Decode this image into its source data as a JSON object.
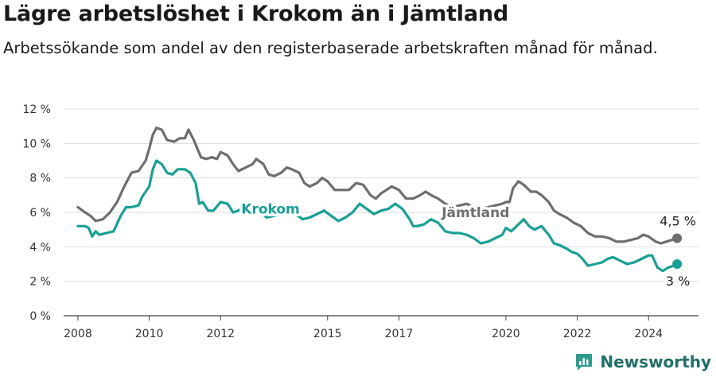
{
  "title": "Lägre arbetslöshet i Krokom än i Jämtland",
  "subtitle": "Arbetssökande som andel av den registerbaserade arbetskraften månad för månad.",
  "brand": {
    "name": "Newsworthy",
    "icon": "newsworthy-logo-icon"
  },
  "colors": {
    "jamtland": "#6e6e6e",
    "krokom": "#17a096",
    "grid": "#dddddd"
  },
  "chart_data": {
    "type": "line",
    "y_ticks": [
      "0 %",
      "2 %",
      "4 %",
      "6 %",
      "8 %",
      "10 %",
      "12 %"
    ],
    "x_ticks": [
      "2008",
      "2010",
      "2012",
      "2015",
      "2017",
      "2020",
      "2022",
      "2024"
    ],
    "ylim": [
      0,
      12
    ],
    "xlim": [
      2007.6,
      2025.4
    ],
    "grid": true,
    "series": [
      {
        "name": "Jämtland",
        "end_label": "4,5 %",
        "points": [
          [
            2008.0,
            6.3
          ],
          [
            2008.2,
            6.0
          ],
          [
            2008.35,
            5.8
          ],
          [
            2008.5,
            5.5
          ],
          [
            2008.7,
            5.6
          ],
          [
            2008.9,
            6.0
          ],
          [
            2009.1,
            6.6
          ],
          [
            2009.3,
            7.5
          ],
          [
            2009.5,
            8.3
          ],
          [
            2009.7,
            8.4
          ],
          [
            2009.9,
            9.0
          ],
          [
            2010.0,
            9.7
          ],
          [
            2010.1,
            10.5
          ],
          [
            2010.2,
            10.9
          ],
          [
            2010.35,
            10.8
          ],
          [
            2010.5,
            10.2
          ],
          [
            2010.7,
            10.1
          ],
          [
            2010.85,
            10.3
          ],
          [
            2011.0,
            10.3
          ],
          [
            2011.1,
            10.8
          ],
          [
            2011.25,
            10.2
          ],
          [
            2011.45,
            9.2
          ],
          [
            2011.6,
            9.1
          ],
          [
            2011.75,
            9.2
          ],
          [
            2011.9,
            9.1
          ],
          [
            2012.0,
            9.5
          ],
          [
            2012.2,
            9.3
          ],
          [
            2012.35,
            8.8
          ],
          [
            2012.5,
            8.4
          ],
          [
            2012.7,
            8.6
          ],
          [
            2012.9,
            8.8
          ],
          [
            2013.0,
            9.1
          ],
          [
            2013.2,
            8.8
          ],
          [
            2013.35,
            8.2
          ],
          [
            2013.5,
            8.1
          ],
          [
            2013.7,
            8.3
          ],
          [
            2013.85,
            8.6
          ],
          [
            2014.0,
            8.5
          ],
          [
            2014.2,
            8.3
          ],
          [
            2014.35,
            7.7
          ],
          [
            2014.5,
            7.5
          ],
          [
            2014.7,
            7.7
          ],
          [
            2014.85,
            8.0
          ],
          [
            2015.0,
            7.8
          ],
          [
            2015.2,
            7.3
          ],
          [
            2015.4,
            7.3
          ],
          [
            2015.6,
            7.3
          ],
          [
            2015.8,
            7.7
          ],
          [
            2016.0,
            7.6
          ],
          [
            2016.2,
            7.0
          ],
          [
            2016.35,
            6.8
          ],
          [
            2016.5,
            7.1
          ],
          [
            2016.65,
            7.3
          ],
          [
            2016.8,
            7.5
          ],
          [
            2017.0,
            7.3
          ],
          [
            2017.2,
            6.8
          ],
          [
            2017.4,
            6.8
          ],
          [
            2017.6,
            7.0
          ],
          [
            2017.75,
            7.2
          ],
          [
            2017.9,
            7.0
          ],
          [
            2018.1,
            6.8
          ],
          [
            2018.3,
            6.5
          ],
          [
            2018.5,
            6.3
          ],
          [
            2018.7,
            6.4
          ],
          [
            2018.9,
            6.5
          ],
          [
            2019.1,
            6.3
          ],
          [
            2019.3,
            6.2
          ],
          [
            2019.5,
            6.3
          ],
          [
            2019.7,
            6.4
          ],
          [
            2019.9,
            6.5
          ],
          [
            2020.0,
            6.6
          ],
          [
            2020.1,
            6.6
          ],
          [
            2020.2,
            7.4
          ],
          [
            2020.35,
            7.8
          ],
          [
            2020.5,
            7.6
          ],
          [
            2020.7,
            7.2
          ],
          [
            2020.85,
            7.2
          ],
          [
            2021.0,
            7.0
          ],
          [
            2021.2,
            6.6
          ],
          [
            2021.35,
            6.1
          ],
          [
            2021.5,
            5.9
          ],
          [
            2021.7,
            5.7
          ],
          [
            2021.9,
            5.4
          ],
          [
            2022.1,
            5.2
          ],
          [
            2022.3,
            4.8
          ],
          [
            2022.5,
            4.6
          ],
          [
            2022.7,
            4.6
          ],
          [
            2022.9,
            4.5
          ],
          [
            2023.1,
            4.3
          ],
          [
            2023.3,
            4.3
          ],
          [
            2023.5,
            4.4
          ],
          [
            2023.7,
            4.5
          ],
          [
            2023.85,
            4.7
          ],
          [
            2024.0,
            4.6
          ],
          [
            2024.2,
            4.3
          ],
          [
            2024.35,
            4.2
          ],
          [
            2024.5,
            4.3
          ],
          [
            2024.65,
            4.4
          ],
          [
            2024.8,
            4.5
          ]
        ]
      },
      {
        "name": "Krokom",
        "end_label": "3 %",
        "points": [
          [
            2008.0,
            5.2
          ],
          [
            2008.2,
            5.2
          ],
          [
            2008.3,
            5.1
          ],
          [
            2008.4,
            4.6
          ],
          [
            2008.5,
            4.9
          ],
          [
            2008.6,
            4.7
          ],
          [
            2008.8,
            4.8
          ],
          [
            2009.0,
            4.9
          ],
          [
            2009.2,
            5.8
          ],
          [
            2009.35,
            6.3
          ],
          [
            2009.5,
            6.3
          ],
          [
            2009.7,
            6.4
          ],
          [
            2009.8,
            6.9
          ],
          [
            2010.0,
            7.5
          ],
          [
            2010.1,
            8.5
          ],
          [
            2010.2,
            9.0
          ],
          [
            2010.35,
            8.8
          ],
          [
            2010.5,
            8.3
          ],
          [
            2010.65,
            8.2
          ],
          [
            2010.8,
            8.5
          ],
          [
            2011.0,
            8.5
          ],
          [
            2011.15,
            8.3
          ],
          [
            2011.3,
            7.7
          ],
          [
            2011.4,
            6.5
          ],
          [
            2011.5,
            6.6
          ],
          [
            2011.65,
            6.1
          ],
          [
            2011.8,
            6.1
          ],
          [
            2012.0,
            6.6
          ],
          [
            2012.2,
            6.5
          ],
          [
            2012.35,
            6.0
          ],
          [
            2012.5,
            6.1
          ],
          [
            2012.7,
            6.4
          ],
          [
            2012.9,
            6.1
          ],
          [
            2013.1,
            6.0
          ],
          [
            2013.3,
            5.7
          ],
          [
            2013.5,
            5.8
          ],
          [
            2013.7,
            5.9
          ],
          [
            2013.9,
            6.0
          ],
          [
            2014.1,
            5.9
          ],
          [
            2014.3,
            5.6
          ],
          [
            2014.5,
            5.7
          ],
          [
            2014.7,
            5.9
          ],
          [
            2014.9,
            6.1
          ],
          [
            2015.1,
            5.8
          ],
          [
            2015.3,
            5.5
          ],
          [
            2015.5,
            5.7
          ],
          [
            2015.7,
            6.0
          ],
          [
            2015.9,
            6.5
          ],
          [
            2016.1,
            6.2
          ],
          [
            2016.3,
            5.9
          ],
          [
            2016.5,
            6.1
          ],
          [
            2016.7,
            6.2
          ],
          [
            2016.9,
            6.5
          ],
          [
            2017.1,
            6.2
          ],
          [
            2017.3,
            5.6
          ],
          [
            2017.4,
            5.2
          ],
          [
            2017.5,
            5.2
          ],
          [
            2017.7,
            5.3
          ],
          [
            2017.9,
            5.6
          ],
          [
            2018.1,
            5.4
          ],
          [
            2018.3,
            4.9
          ],
          [
            2018.5,
            4.8
          ],
          [
            2018.7,
            4.8
          ],
          [
            2018.9,
            4.7
          ],
          [
            2019.1,
            4.5
          ],
          [
            2019.3,
            4.2
          ],
          [
            2019.5,
            4.3
          ],
          [
            2019.7,
            4.5
          ],
          [
            2019.9,
            4.7
          ],
          [
            2020.0,
            5.1
          ],
          [
            2020.15,
            4.9
          ],
          [
            2020.3,
            5.2
          ],
          [
            2020.5,
            5.6
          ],
          [
            2020.65,
            5.2
          ],
          [
            2020.8,
            5.0
          ],
          [
            2021.0,
            5.2
          ],
          [
            2021.2,
            4.7
          ],
          [
            2021.35,
            4.2
          ],
          [
            2021.5,
            4.1
          ],
          [
            2021.7,
            3.9
          ],
          [
            2021.85,
            3.7
          ],
          [
            2022.0,
            3.6
          ],
          [
            2022.15,
            3.3
          ],
          [
            2022.3,
            2.9
          ],
          [
            2022.5,
            3.0
          ],
          [
            2022.7,
            3.1
          ],
          [
            2022.85,
            3.3
          ],
          [
            2023.0,
            3.4
          ],
          [
            2023.2,
            3.2
          ],
          [
            2023.4,
            3.0
          ],
          [
            2023.6,
            3.1
          ],
          [
            2023.8,
            3.3
          ],
          [
            2024.0,
            3.5
          ],
          [
            2024.1,
            3.5
          ],
          [
            2024.25,
            2.8
          ],
          [
            2024.4,
            2.6
          ],
          [
            2024.55,
            2.8
          ],
          [
            2024.7,
            2.9
          ],
          [
            2024.8,
            3.0
          ]
        ]
      }
    ],
    "annotations": [
      {
        "text": "Krokom",
        "x": 2013.4,
        "y": 6.2,
        "series": "Krokom"
      },
      {
        "text": "Jämtland",
        "x": 2019.15,
        "y": 6.0,
        "series": "Jämtland"
      }
    ]
  }
}
